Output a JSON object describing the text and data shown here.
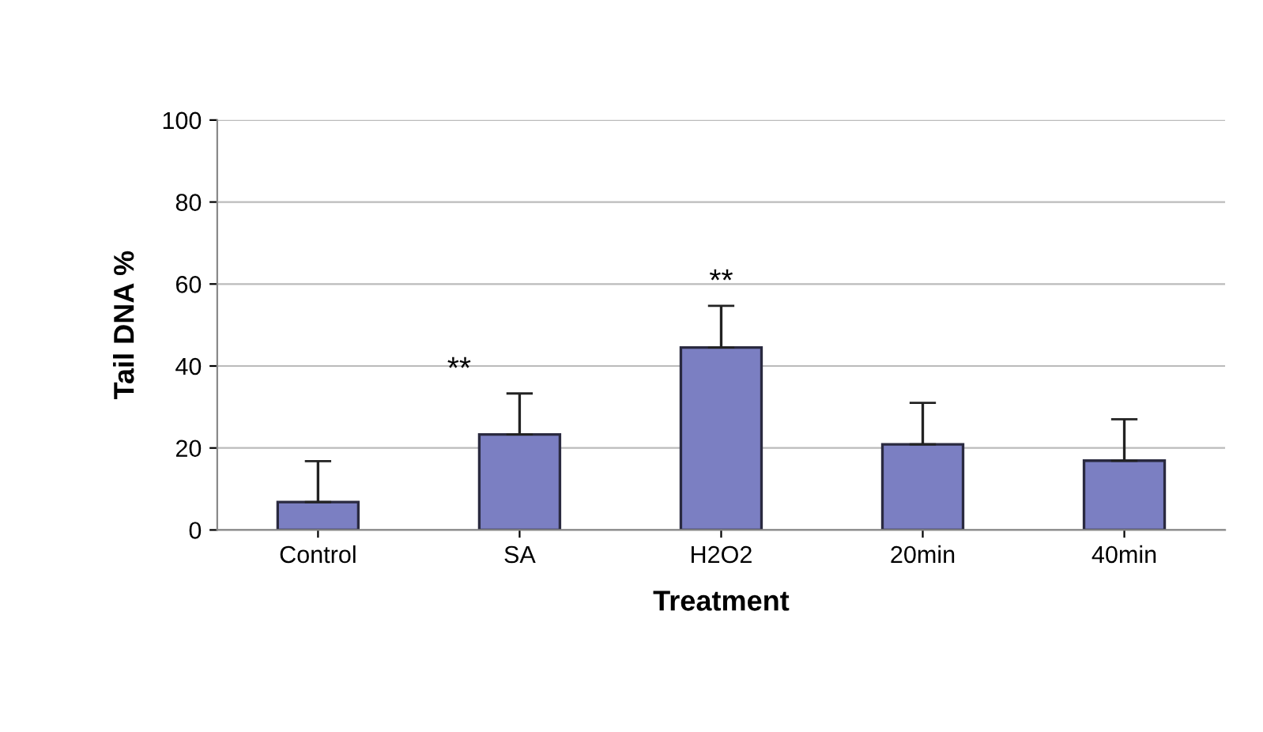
{
  "chart_data": {
    "type": "bar",
    "xlabel": "Treatment",
    "ylabel": "Tail DNA %",
    "categories": [
      "Control",
      "SA",
      "H2O2",
      "20min",
      "40min"
    ],
    "series": [
      {
        "color": "#7b7fc2",
        "values": [
          6.8,
          23.3,
          44.5,
          20.9,
          16.9
        ],
        "errors": [
          [
            6.8,
            16.8
          ],
          [
            23.3,
            33.3
          ],
          [
            44.5,
            54.7
          ],
          [
            20.9,
            31
          ],
          [
            16.9,
            27
          ]
        ]
      }
    ],
    "ylim": [
      0,
      100
    ],
    "yticks": [
      0,
      20,
      40,
      60,
      80,
      100
    ],
    "grid": "y",
    "annotations": [
      {
        "text": "**",
        "x": "SA",
        "y": 33.3
      },
      {
        "text": "**",
        "x": "H2O2",
        "y": 54.7
      }
    ]
  }
}
